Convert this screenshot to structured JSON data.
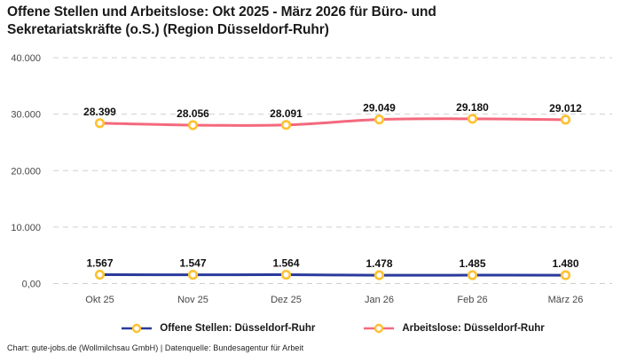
{
  "title": "Offene Stellen und Arbeitslose: Okt 2025 - März 2026 für Büro- und Sekretariatskräfte (o.S.) (Region Düsseldorf-Ruhr)",
  "footer": "Chart: gute-jobs.de (Wollmilchsau GmbH) | Datenquelle: Bundesagentur für Arbeit",
  "colors": {
    "open_positions_line": "#2a3a9c",
    "unemployed_line": "#f4697d",
    "marker_ring": "#fdc130",
    "marker_fill": "#ffffff",
    "grid": "#cfcfcf",
    "title_text": "#1a1a1a",
    "axis_text": "#474747",
    "data_label_text": "#111111"
  },
  "chart_data": {
    "type": "line",
    "title": "Offene Stellen und Arbeitslose: Okt 2025 - März 2026 für Büro- und Sekretariatskräfte (o.S.) (Region Düsseldorf-Ruhr)",
    "categories": [
      "Okt 25",
      "Nov 25",
      "Dez 25",
      "Jan 26",
      "Feb 26",
      "März 26"
    ],
    "series": [
      {
        "id": "arbeitslose",
        "name": "Arbeitslose: Düsseldorf-Ruhr",
        "color": "#f4697d",
        "values": [
          28399,
          28056,
          28091,
          29049,
          29180,
          29012
        ],
        "labels": [
          "28.399",
          "28.056",
          "28.091",
          "29.049",
          "29.180",
          "29.012"
        ]
      },
      {
        "id": "offene-stellen",
        "name": "Offene Stellen: Düsseldorf-Ruhr",
        "color": "#2a3a9c",
        "values": [
          1567,
          1547,
          1564,
          1478,
          1485,
          1480
        ],
        "labels": [
          "1.567",
          "1.547",
          "1.564",
          "1.478",
          "1.485",
          "1.480"
        ]
      }
    ],
    "legend_order": [
      "offene-stellen",
      "arbeitslose"
    ],
    "marker_color": "#fdc130",
    "xlabel": "",
    "ylabel": "",
    "ylim": [
      0,
      40000
    ],
    "yticks": [
      {
        "value": 0,
        "label": "0,00"
      },
      {
        "value": 10000,
        "label": "10.000"
      },
      {
        "value": 20000,
        "label": "20.000"
      },
      {
        "value": 30000,
        "label": "30.000"
      },
      {
        "value": 40000,
        "label": "40.000"
      }
    ],
    "grid": "horizontal-dashed",
    "legend_position": "bottom"
  }
}
